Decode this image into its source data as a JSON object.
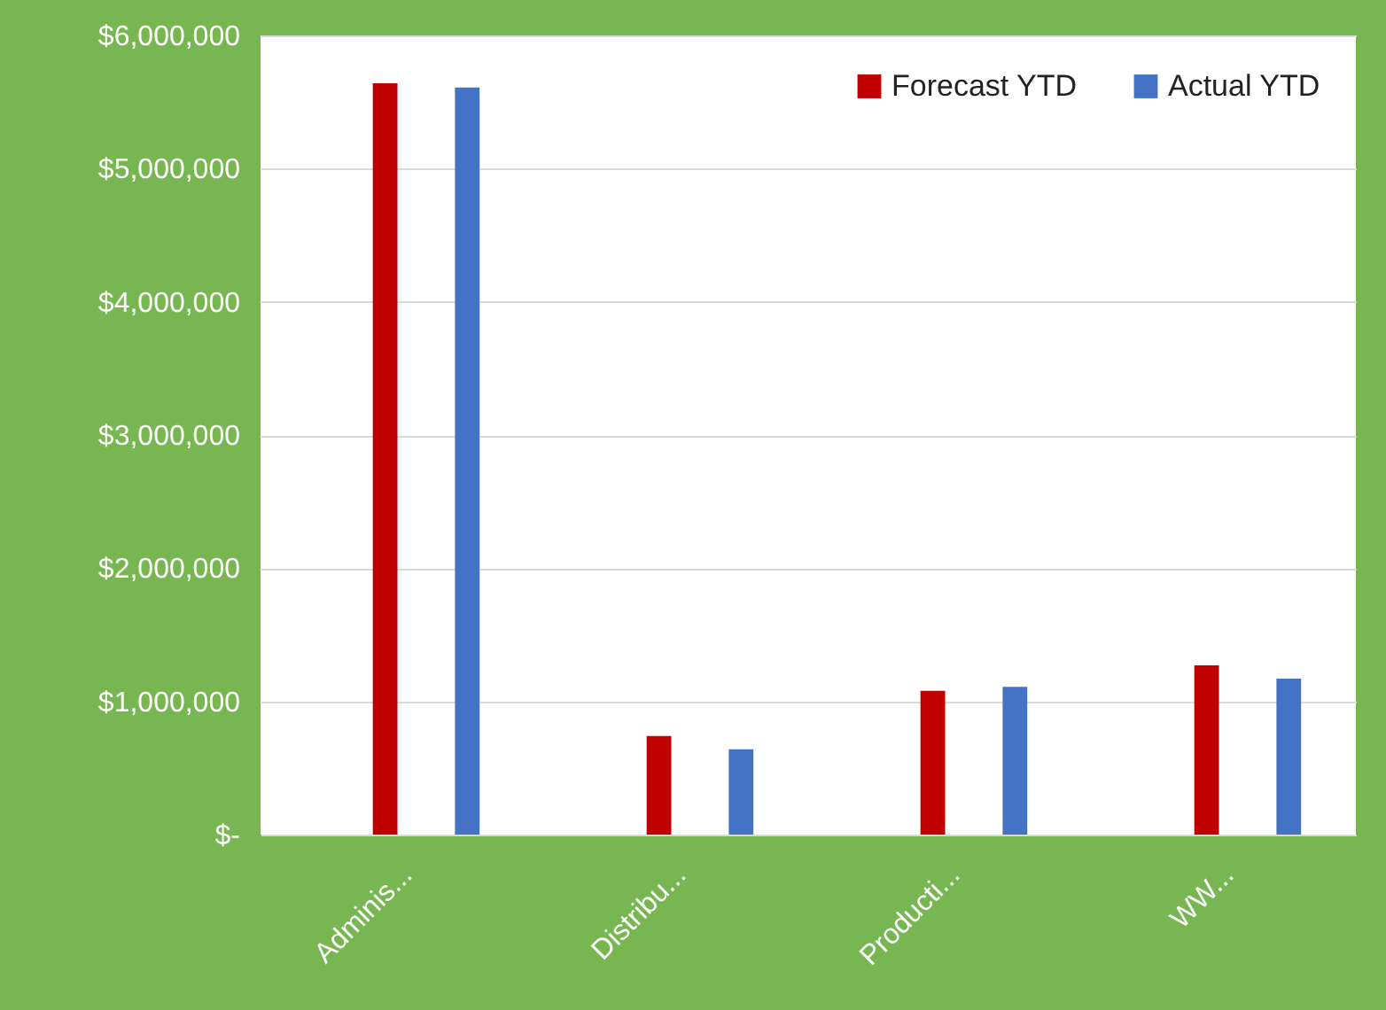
{
  "chart_data": {
    "type": "bar",
    "categories": [
      "Adminis...",
      "Distribu...",
      "Producti...",
      "WW..."
    ],
    "series": [
      {
        "name": "Forecast YTD",
        "color": "#c00000",
        "values": [
          5640000,
          740000,
          1080000,
          1270000
        ]
      },
      {
        "name": "Actual YTD",
        "color": "#4472c4",
        "values": [
          5610000,
          640000,
          1110000,
          1170000
        ]
      }
    ],
    "ylim": [
      0,
      6000000
    ],
    "yticks": [
      {
        "value": 0,
        "label": "$-"
      },
      {
        "value": 1000000,
        "label": "$1,000,000"
      },
      {
        "value": 2000000,
        "label": "$2,000,000"
      },
      {
        "value": 3000000,
        "label": "$3,000,000"
      },
      {
        "value": 4000000,
        "label": "$4,000,000"
      },
      {
        "value": 5000000,
        "label": "$5,000,000"
      },
      {
        "value": 6000000,
        "label": "$6,000,000"
      }
    ],
    "grid": "y",
    "legend": "top right"
  }
}
